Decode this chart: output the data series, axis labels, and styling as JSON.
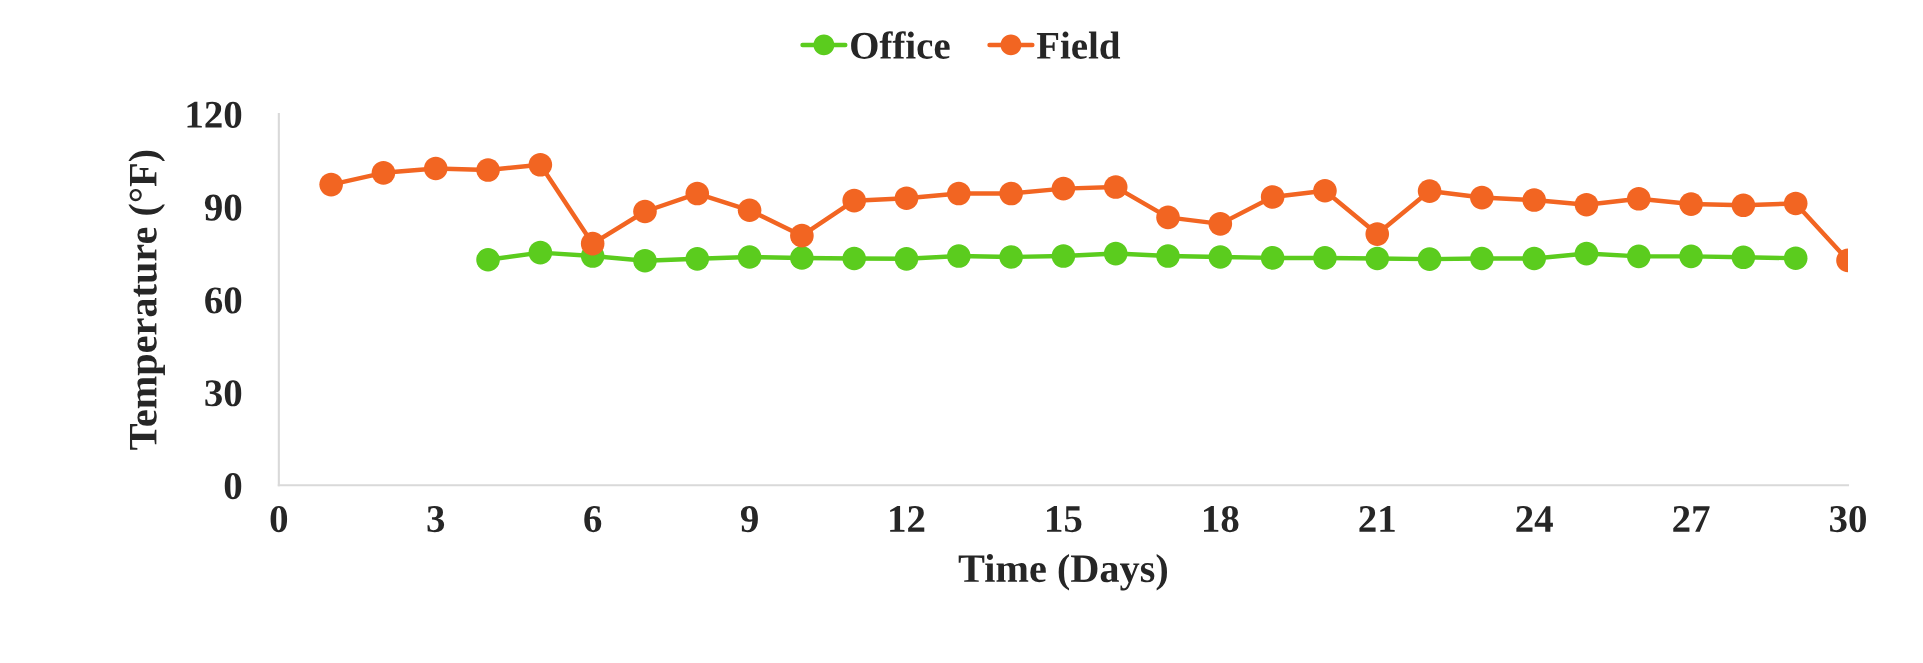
{
  "chart_data": {
    "type": "line",
    "xlabel": "Time (Days)",
    "ylabel": "Temperature (°F)",
    "x": [
      1,
      2,
      3,
      4,
      5,
      6,
      7,
      8,
      9,
      10,
      11,
      12,
      13,
      14,
      15,
      16,
      17,
      18,
      19,
      20,
      21,
      22,
      23,
      24,
      25,
      26,
      27,
      28,
      29,
      30
    ],
    "series": [
      {
        "name": "Office",
        "color": "#5bcc1e",
        "values": [
          null,
          null,
          null,
          72.9,
          75.2,
          74.1,
          72.6,
          73.2,
          73.8,
          73.5,
          73.3,
          73.2,
          74.1,
          73.8,
          74.1,
          74.9,
          74.1,
          73.8,
          73.5,
          73.5,
          73.3,
          73.1,
          73.3,
          73.3,
          74.9,
          74.0,
          74.0,
          73.7,
          73.4,
          null
        ]
      },
      {
        "name": "Field",
        "color": "#f26522",
        "values": [
          97.2,
          101.0,
          102.4,
          101.9,
          103.6,
          78.1,
          88.5,
          94.3,
          88.9,
          80.7,
          92.0,
          92.8,
          94.3,
          94.3,
          95.9,
          96.4,
          86.6,
          84.5,
          93.2,
          95.2,
          81.2,
          95.1,
          93.0,
          92.2,
          90.7,
          92.6,
          90.9,
          90.5,
          91.1,
          72.7
        ]
      }
    ],
    "xlim": [
      0,
      30
    ],
    "xticks": [
      0,
      3,
      6,
      9,
      12,
      15,
      18,
      21,
      24,
      27,
      30
    ],
    "ylim": [
      0,
      120
    ],
    "yticks": [
      0,
      30,
      60,
      90,
      120
    ],
    "marker": "circle",
    "line_style": "solid",
    "legend": "top"
  }
}
